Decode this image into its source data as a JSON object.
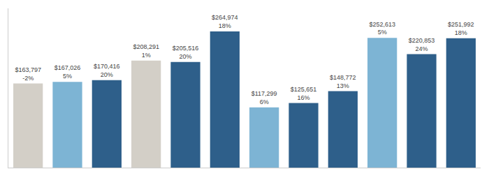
{
  "chart_data": {
    "type": "bar",
    "categories": [
      null,
      null,
      null,
      null,
      null,
      null,
      null,
      null,
      null,
      null,
      null,
      null
    ],
    "values": [
      163797,
      167026,
      170416,
      208291,
      205516,
      264974,
      117299,
      125651,
      148772,
      252613,
      220853,
      251992
    ],
    "value_labels": [
      "$163,797",
      "$167,026",
      "$170,416",
      "$208,291",
      "$205,516",
      "$264,974",
      "$117,299",
      "$125,651",
      "$148,772",
      "$252,613",
      "$220,853",
      "$251,992"
    ],
    "pct_labels": [
      "-2%",
      "5%",
      "20%",
      "1%",
      "20%",
      "18%",
      "6%",
      "16%",
      "13%",
      "5%",
      "24%",
      "18%"
    ],
    "colors": [
      "#d3cfc7",
      "#7db4d4",
      "#2e5f8a",
      "#d3cfc7",
      "#2e5f8a",
      "#2e5f8a",
      "#7db4d4",
      "#2e5f8a",
      "#2e5f8a",
      "#7db4d4",
      "#2e5f8a",
      "#2e5f8a"
    ],
    "ylim": [
      0,
      310000
    ],
    "yticks": [],
    "grid": false,
    "data_labels": true,
    "tick_labels": false
  }
}
